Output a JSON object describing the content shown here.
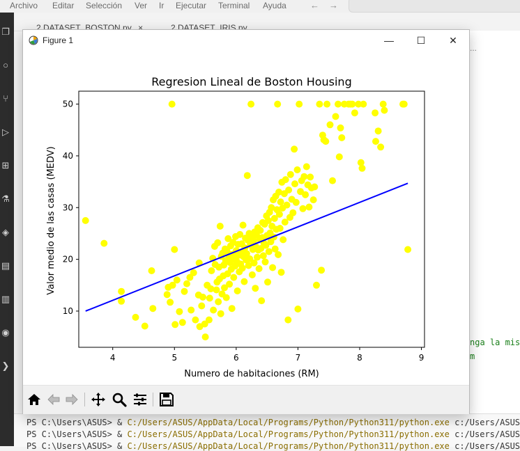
{
  "menu": {
    "items": [
      "Archivo",
      "Editar",
      "Selección",
      "Ver",
      "Ir",
      "Ejecutar",
      "Terminal",
      "Ayuda"
    ],
    "back_icon": "arrow-left-icon",
    "forward_icon": "arrow-right-icon"
  },
  "tabs": [
    {
      "label": "2.DATASET_BOSTON.py",
      "close": "×"
    },
    {
      "label": "2.DATASET_IRIS.py"
    }
  ],
  "editor": {
    "dots": "...",
    "code_line_1": "nga la mis",
    "code_line_2": "m"
  },
  "terminal": {
    "prompt": "PS C:\\Users\\ASUS> & ",
    "path": "C:/Users/ASUS/AppData/Local/Programs/Python/Python311/python.exe",
    "arg": " c:/Users/ASUS/De"
  },
  "figure": {
    "window_title": "Figure 1",
    "minimize": "—",
    "maximize": "☐",
    "close": "✕"
  },
  "toolbar": {
    "tools": [
      "home-icon",
      "back-icon",
      "forward-icon",
      "pan-icon",
      "zoom-icon",
      "configure-subplots-icon",
      "save-icon"
    ]
  },
  "chart_data": {
    "type": "scatter",
    "title": "Regresion Lineal de Boston Housing",
    "xlabel": "Numero de habitaciones (RM)",
    "ylabel": "Valor medio de las casas (MEDV)",
    "xlim": [
      3.45,
      9.05
    ],
    "ylim": [
      3,
      52.5
    ],
    "xticks": [
      4,
      5,
      6,
      7,
      8,
      9
    ],
    "yticks": [
      10,
      20,
      30,
      40,
      50
    ],
    "scatter_color": "#ffff00",
    "line_color": "#0000ff",
    "grid": false,
    "regression_line": {
      "x": [
        3.56,
        8.78
      ],
      "y": [
        10.0,
        34.7
      ]
    },
    "points": [
      [
        3.56,
        27.5
      ],
      [
        3.86,
        23.1
      ],
      [
        4.14,
        13.8
      ],
      [
        4.14,
        11.9
      ],
      [
        4.37,
        8.8
      ],
      [
        4.52,
        7.1
      ],
      [
        4.63,
        17.8
      ],
      [
        4.65,
        10.5
      ],
      [
        4.88,
        13.2
      ],
      [
        4.9,
        14.6
      ],
      [
        4.93,
        11.7
      ],
      [
        4.96,
        50.0
      ],
      [
        4.97,
        15.0
      ],
      [
        5.0,
        21.9
      ],
      [
        5.01,
        7.4
      ],
      [
        5.04,
        16.0
      ],
      [
        5.08,
        9.9
      ],
      [
        5.13,
        7.8
      ],
      [
        5.16,
        13.8
      ],
      [
        5.2,
        15.3
      ],
      [
        5.25,
        16.5
      ],
      [
        5.27,
        10.2
      ],
      [
        5.31,
        17.4
      ],
      [
        5.34,
        8.3
      ],
      [
        5.39,
        13.1
      ],
      [
        5.4,
        19.3
      ],
      [
        5.41,
        7.0
      ],
      [
        5.44,
        11.0
      ],
      [
        5.46,
        12.7
      ],
      [
        5.49,
        7.5
      ],
      [
        5.5,
        5.0
      ],
      [
        5.53,
        15.0
      ],
      [
        5.56,
        8.3
      ],
      [
        5.57,
        12.5
      ],
      [
        5.59,
        14.3
      ],
      [
        5.6,
        17.8
      ],
      [
        5.62,
        20.2
      ],
      [
        5.63,
        10.2
      ],
      [
        5.65,
        22.5
      ],
      [
        5.66,
        19.0
      ],
      [
        5.68,
        14.1
      ],
      [
        5.69,
        15.6
      ],
      [
        5.7,
        23.2
      ],
      [
        5.71,
        11.8
      ],
      [
        5.72,
        18.5
      ],
      [
        5.73,
        16.2
      ],
      [
        5.74,
        26.4
      ],
      [
        5.75,
        9.5
      ],
      [
        5.76,
        20.6
      ],
      [
        5.77,
        13.3
      ],
      [
        5.78,
        21.2
      ],
      [
        5.79,
        16.8
      ],
      [
        5.8,
        18.9
      ],
      [
        5.81,
        14.5
      ],
      [
        5.82,
        22.0
      ],
      [
        5.83,
        19.7
      ],
      [
        5.84,
        12.6
      ],
      [
        5.85,
        21.6
      ],
      [
        5.86,
        17.2
      ],
      [
        5.87,
        24.0
      ],
      [
        5.88,
        20.3
      ],
      [
        5.89,
        15.2
      ],
      [
        5.9,
        19.4
      ],
      [
        5.91,
        22.6
      ],
      [
        5.92,
        18.1
      ],
      [
        5.93,
        10.5
      ],
      [
        5.94,
        21.0
      ],
      [
        5.95,
        23.3
      ],
      [
        5.96,
        16.5
      ],
      [
        5.97,
        20.0
      ],
      [
        5.98,
        18.7
      ],
      [
        5.99,
        24.4
      ],
      [
        6.0,
        21.7
      ],
      [
        6.01,
        19.6
      ],
      [
        6.02,
        13.9
      ],
      [
        6.03,
        22.9
      ],
      [
        6.04,
        20.8
      ],
      [
        6.05,
        17.6
      ],
      [
        6.06,
        24.8
      ],
      [
        6.07,
        19.1
      ],
      [
        6.08,
        21.4
      ],
      [
        6.09,
        23.0
      ],
      [
        6.1,
        18.3
      ],
      [
        6.11,
        26.6
      ],
      [
        6.12,
        20.5
      ],
      [
        6.13,
        15.7
      ],
      [
        6.14,
        22.2
      ],
      [
        6.15,
        24.1
      ],
      [
        6.16,
        19.9
      ],
      [
        6.17,
        21.1
      ],
      [
        6.18,
        36.2
      ],
      [
        6.19,
        23.7
      ],
      [
        6.2,
        18.8
      ],
      [
        6.21,
        25.0
      ],
      [
        6.22,
        20.1
      ],
      [
        6.23,
        22.8
      ],
      [
        6.24,
        50.0
      ],
      [
        6.25,
        24.5
      ],
      [
        6.26,
        17.0
      ],
      [
        6.27,
        21.9
      ],
      [
        6.28,
        23.6
      ],
      [
        6.29,
        19.3
      ],
      [
        6.3,
        25.3
      ],
      [
        6.31,
        14.4
      ],
      [
        6.32,
        22.4
      ],
      [
        6.33,
        24.7
      ],
      [
        6.34,
        20.4
      ],
      [
        6.35,
        26.1
      ],
      [
        6.36,
        21.8
      ],
      [
        6.37,
        18.2
      ],
      [
        6.38,
        23.9
      ],
      [
        6.39,
        25.6
      ],
      [
        6.4,
        22.1
      ],
      [
        6.41,
        12.0
      ],
      [
        6.42,
        24.2
      ],
      [
        6.43,
        27.1
      ],
      [
        6.44,
        20.7
      ],
      [
        6.45,
        23.1
      ],
      [
        6.46,
        26.8
      ],
      [
        6.47,
        19.5
      ],
      [
        6.48,
        22.7
      ],
      [
        6.49,
        28.4
      ],
      [
        6.5,
        24.6
      ],
      [
        6.51,
        15.6
      ],
      [
        6.52,
        27.5
      ],
      [
        6.53,
        21.5
      ],
      [
        6.54,
        29.1
      ],
      [
        6.55,
        25.1
      ],
      [
        6.56,
        23.4
      ],
      [
        6.57,
        30.0
      ],
      [
        6.58,
        26.4
      ],
      [
        6.59,
        18.4
      ],
      [
        6.6,
        31.5
      ],
      [
        6.61,
        24.3
      ],
      [
        6.62,
        27.9
      ],
      [
        6.63,
        22.0
      ],
      [
        6.64,
        32.2
      ],
      [
        6.65,
        25.8
      ],
      [
        6.66,
        29.6
      ],
      [
        6.67,
        50.0
      ],
      [
        6.68,
        20.9
      ],
      [
        6.69,
        33.0
      ],
      [
        6.7,
        28.7
      ],
      [
        6.71,
        26.0
      ],
      [
        6.72,
        31.1
      ],
      [
        6.73,
        17.5
      ],
      [
        6.74,
        34.9
      ],
      [
        6.75,
        29.9
      ],
      [
        6.76,
        23.8
      ],
      [
        6.78,
        32.7
      ],
      [
        6.79,
        27.2
      ],
      [
        6.8,
        35.4
      ],
      [
        6.82,
        30.5
      ],
      [
        6.84,
        8.3
      ],
      [
        6.85,
        33.4
      ],
      [
        6.87,
        28.1
      ],
      [
        6.88,
        36.4
      ],
      [
        6.9,
        31.6
      ],
      [
        6.92,
        29.0
      ],
      [
        6.94,
        41.3
      ],
      [
        6.95,
        34.6
      ],
      [
        6.97,
        31.0
      ],
      [
        6.99,
        37.3
      ],
      [
        7.0,
        10.4
      ],
      [
        7.02,
        50.0
      ],
      [
        7.04,
        33.1
      ],
      [
        7.06,
        35.2
      ],
      [
        7.08,
        29.8
      ],
      [
        7.1,
        36.0
      ],
      [
        7.12,
        32.5
      ],
      [
        7.14,
        37.9
      ],
      [
        7.16,
        34.4
      ],
      [
        7.18,
        30.1
      ],
      [
        7.2,
        35.9
      ],
      [
        7.22,
        33.8
      ],
      [
        7.25,
        31.5
      ],
      [
        7.27,
        34.0
      ],
      [
        7.3,
        15.0
      ],
      [
        7.35,
        50.0
      ],
      [
        7.38,
        17.9
      ],
      [
        7.4,
        44.0
      ],
      [
        7.42,
        43.1
      ],
      [
        7.45,
        42.8
      ],
      [
        7.47,
        50.0
      ],
      [
        7.52,
        46.0
      ],
      [
        7.56,
        35.2
      ],
      [
        7.61,
        47.6
      ],
      [
        7.65,
        50.0
      ],
      [
        7.67,
        39.8
      ],
      [
        7.69,
        45.4
      ],
      [
        7.71,
        43.5
      ],
      [
        7.75,
        50.0
      ],
      [
        7.82,
        50.0
      ],
      [
        7.85,
        50.0
      ],
      [
        7.88,
        50.0
      ],
      [
        7.92,
        48.3
      ],
      [
        7.98,
        50.0
      ],
      [
        8.02,
        38.7
      ],
      [
        8.04,
        37.6
      ],
      [
        8.06,
        50.0
      ],
      [
        8.25,
        48.3
      ],
      [
        8.26,
        42.8
      ],
      [
        8.3,
        44.8
      ],
      [
        8.34,
        41.7
      ],
      [
        8.38,
        50.0
      ],
      [
        8.4,
        48.8
      ],
      [
        8.7,
        50.0
      ],
      [
        8.72,
        50.0
      ],
      [
        8.78,
        21.9
      ]
    ]
  }
}
